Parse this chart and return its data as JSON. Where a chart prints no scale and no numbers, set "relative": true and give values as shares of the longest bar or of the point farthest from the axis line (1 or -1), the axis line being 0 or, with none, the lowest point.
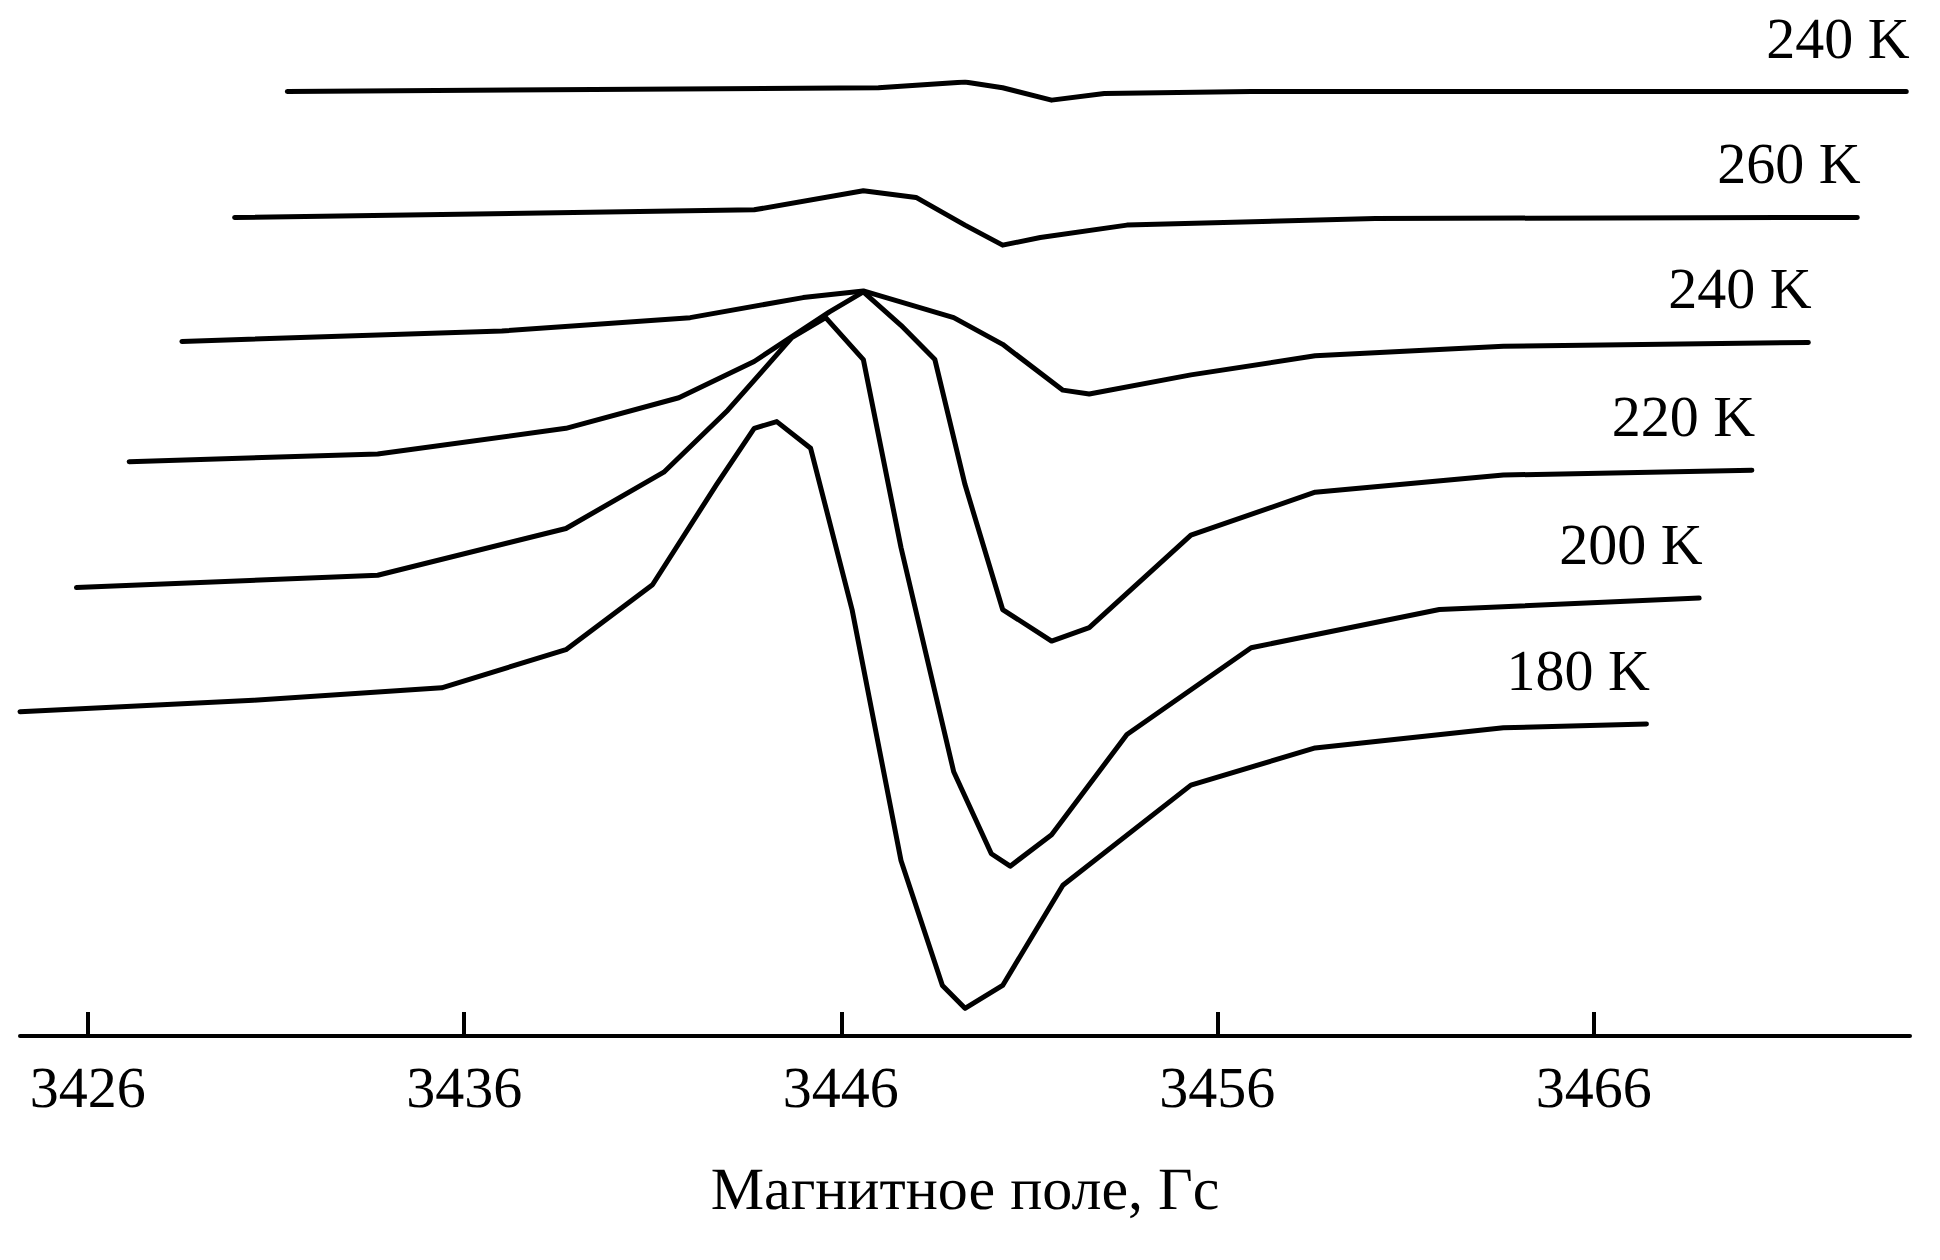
{
  "chart_data": {
    "type": "line",
    "relative": true,
    "xlabel": "Магнитное поле, Гс",
    "xlim": [
      3424.2,
      3474.4
    ],
    "xticks": [
      3426,
      3436,
      3446,
      3456,
      3466
    ],
    "grid": false,
    "legend": false,
    "marker": "none",
    "line_style": "solid",
    "tick_labels": "x",
    "series": [
      {
        "name": "180 K",
        "color": "#000000",
        "x": [
          3424.2,
          3430.4,
          3435.4,
          3438.7,
          3441.0,
          3442.7,
          3443.7,
          3444.3,
          3445.2,
          3446.3,
          3447.6,
          3448.7,
          3449.3,
          3450.3,
          3451.9,
          3455.3,
          3458.6,
          3463.6,
          3467.4
        ],
        "values": [
          0.34,
          0.352,
          0.365,
          0.405,
          0.473,
          0.578,
          0.637,
          0.644,
          0.616,
          0.447,
          0.184,
          0.053,
          0.029,
          0.053,
          0.158,
          0.263,
          0.302,
          0.323,
          0.327
        ]
      },
      {
        "name": "200 K",
        "color": "#000000",
        "x": [
          3425.7,
          3433.7,
          3438.7,
          3441.3,
          3443.0,
          3444.7,
          3445.6,
          3446.6,
          3447.6,
          3449.0,
          3450.0,
          3450.5,
          3451.6,
          3453.6,
          3456.9,
          3461.9,
          3468.8
        ],
        "values": [
          0.47,
          0.483,
          0.532,
          0.591,
          0.656,
          0.732,
          0.753,
          0.709,
          0.512,
          0.277,
          0.191,
          0.178,
          0.211,
          0.316,
          0.407,
          0.447,
          0.459
        ]
      },
      {
        "name": "220 K",
        "color": "#000000",
        "x": [
          3427.1,
          3433.7,
          3438.7,
          3441.7,
          3443.7,
          3445.7,
          3446.6,
          3447.6,
          3448.5,
          3449.3,
          3450.3,
          3451.6,
          3452.6,
          3455.3,
          3458.6,
          3463.6,
          3470.2
        ],
        "values": [
          0.602,
          0.61,
          0.637,
          0.669,
          0.707,
          0.759,
          0.78,
          0.745,
          0.709,
          0.578,
          0.447,
          0.414,
          0.428,
          0.525,
          0.57,
          0.588,
          0.593
        ]
      },
      {
        "name": "240 K",
        "color": "#000000",
        "x": [
          3428.5,
          3437.0,
          3442.0,
          3445.0,
          3446.6,
          3449.0,
          3450.3,
          3451.9,
          3452.6,
          3455.3,
          3458.6,
          3463.6,
          3471.7
        ],
        "values": [
          0.728,
          0.739,
          0.753,
          0.774,
          0.781,
          0.753,
          0.725,
          0.677,
          0.673,
          0.693,
          0.713,
          0.723,
          0.727
        ]
      },
      {
        "name": "260 K",
        "color": "#000000",
        "x": [
          3429.9,
          3443.7,
          3446.6,
          3448.0,
          3449.3,
          3450.3,
          3451.3,
          3453.6,
          3460.2,
          3473.0
        ],
        "values": [
          0.858,
          0.866,
          0.886,
          0.879,
          0.85,
          0.829,
          0.837,
          0.85,
          0.857,
          0.858
        ]
      },
      {
        "name": "240 K",
        "color": "#000000",
        "x": [
          3431.3,
          3447.0,
          3449.3,
          3450.3,
          3451.6,
          3453.0,
          3456.9,
          3474.3
        ],
        "values": [
          0.99,
          0.994,
          1.0,
          0.994,
          0.981,
          0.988,
          0.99,
          0.99
        ]
      }
    ]
  }
}
